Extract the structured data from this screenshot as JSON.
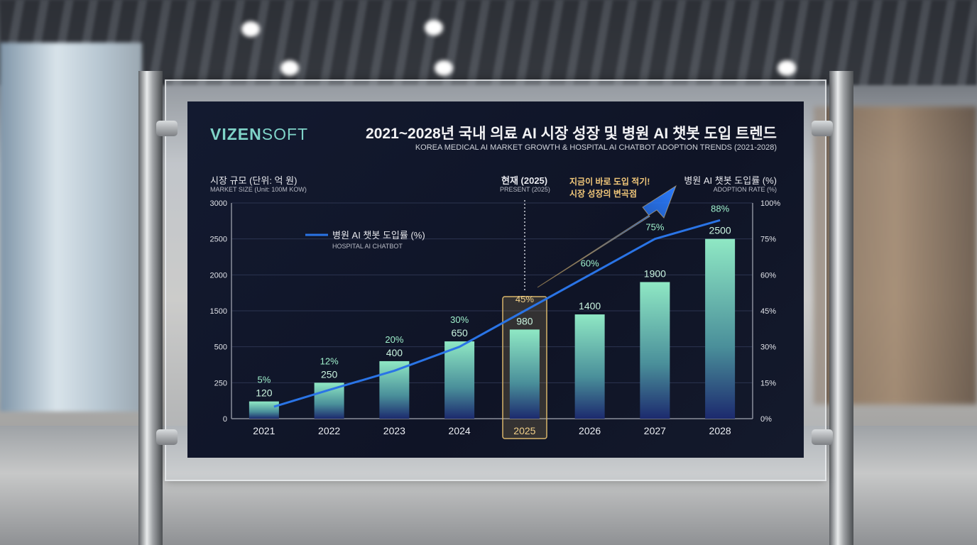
{
  "logo": {
    "bold": "VIZEN",
    "light": "SOFT"
  },
  "title": "2021~2028년 국내 의료 AI 시장 성장 및 병원 AI 챗봇 도입 트렌드",
  "subtitle": "KOREA MEDICAL AI MARKET GROWTH & HOSPITAL AI CHATBOT ADOPTION TRENDS (2021-2028)",
  "left_axis": {
    "title_ko": "시장 규모 (단위: 억 원)",
    "title_en": "MARKET SIZE (Unit: 100M KOW)"
  },
  "right_axis": {
    "title_ko": "병원 AI 챗봇 도입률 (%)",
    "title_en": "ADOPTION RATE (%)"
  },
  "present": {
    "title_ko": "현재 (2025)",
    "title_en": "PRESENT (2025)"
  },
  "callout": {
    "line1": "지금이 바로 도입 적기!",
    "line2": "시장 성장의 변곡점"
  },
  "legend": {
    "label_ko": "병원 AI 챗봇 도입률 (%)",
    "label_en": "HOSPITAL AI CHATBOT"
  },
  "colors": {
    "bar_top": "#8fe8c4",
    "bar_bottom": "#1c2a6e",
    "line": "#2a74e6",
    "highlight": "#d8b56a",
    "pct_label": "#9ff0cc"
  },
  "chart_data": {
    "type": "bar+line",
    "categories": [
      "2021",
      "2022",
      "2023",
      "2024",
      "2025",
      "2026",
      "2027",
      "2028"
    ],
    "series": [
      {
        "name": "시장 규모 (억 원)",
        "type": "bar",
        "axis": "left",
        "values": [
          120,
          250,
          400,
          650,
          980,
          1400,
          1900,
          2500
        ]
      },
      {
        "name": "병원 AI 챗봇 도입률 (%)",
        "type": "line",
        "axis": "right",
        "values": [
          5,
          12,
          20,
          30,
          45,
          60,
          75,
          88
        ]
      }
    ],
    "left_ticks": [
      "0",
      "250",
      "500",
      "1500",
      "2000",
      "2500",
      "3000"
    ],
    "left_tick_values": [
      0,
      250,
      500,
      1500,
      2000,
      2500,
      3000
    ],
    "right_ticks": [
      "0%",
      "15%",
      "30%",
      "45%",
      "60%",
      "75%",
      "100%"
    ],
    "right_tick_values": [
      0,
      15,
      30,
      45,
      60,
      75,
      100
    ],
    "highlight_category": "2025",
    "grid": true,
    "legend_placement": "top-left"
  }
}
